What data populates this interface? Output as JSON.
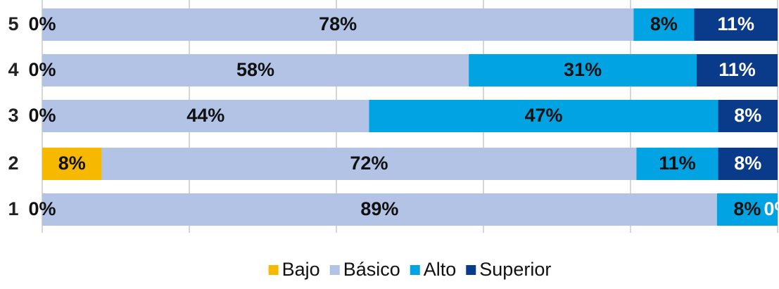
{
  "chart_data": {
    "type": "bar",
    "orientation": "horizontal",
    "stacking": "percent",
    "categories": [
      "5",
      "4",
      "3",
      "2",
      "1"
    ],
    "series": [
      {
        "name": "Bajo",
        "color": "#f6b900",
        "values": [
          0,
          0,
          0,
          8,
          0
        ],
        "value_labels": [
          "0%",
          "0%",
          "0%",
          "8%",
          "0%"
        ]
      },
      {
        "name": "Básico",
        "color": "#b3c3e5",
        "values": [
          78,
          58,
          44,
          72,
          89
        ],
        "value_labels": [
          "78%",
          "58%",
          "44%",
          "72%",
          "89%"
        ]
      },
      {
        "name": "Alto",
        "color": "#02a3e2",
        "values": [
          8,
          31,
          47,
          11,
          8
        ],
        "value_labels": [
          "8%",
          "31%",
          "47%",
          "11%",
          "8%"
        ]
      },
      {
        "name": "Superior",
        "color": "#0a3a8a",
        "values": [
          11,
          11,
          8,
          8,
          0
        ],
        "value_labels": [
          "11%",
          "11%",
          "8%",
          "8%",
          "0%"
        ]
      }
    ],
    "xlim": [
      0,
      100
    ],
    "xticks": [
      0,
      20,
      40,
      60,
      80,
      100
    ],
    "grid": true,
    "legend": "bottom"
  }
}
